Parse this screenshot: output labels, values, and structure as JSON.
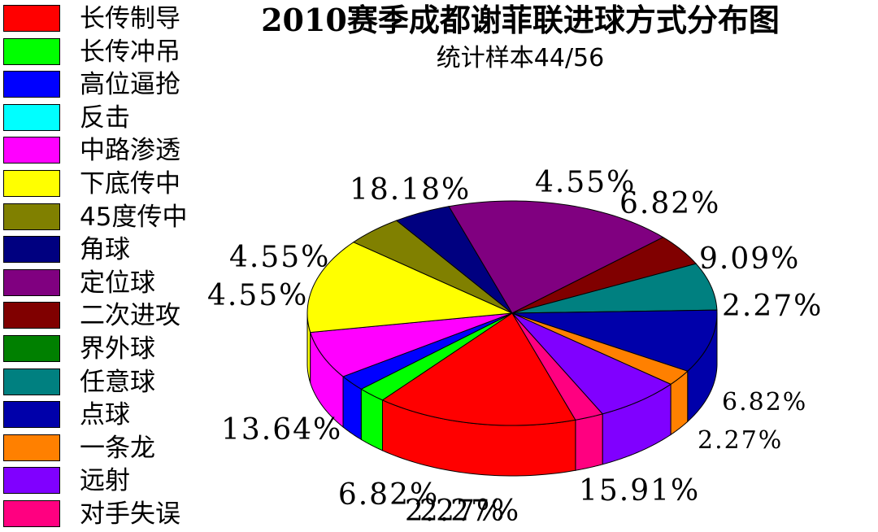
{
  "chart_data": {
    "type": "pie",
    "title": "2010赛季成都谢菲联进球方式分布图",
    "subtitle": "统计样本44/56",
    "slices": [
      {
        "label": "长传制导",
        "value": 15.91,
        "value_label": "15.91%",
        "color": "#ff0000"
      },
      {
        "label": "长传冲吊",
        "value": 2.27,
        "value_label": "2.27%",
        "color": "#00ff00"
      },
      {
        "label": "高位逼抢",
        "value": 2.27,
        "value_label": "2.27%",
        "color": "#0000ff"
      },
      {
        "label": "反击",
        "value": 0,
        "value_label": "",
        "color": "#00ffff"
      },
      {
        "label": "中路渗透",
        "value": 6.82,
        "value_label": "6.82%",
        "color": "#ff00ff"
      },
      {
        "label": "下底传中",
        "value": 13.64,
        "value_label": "13.64%",
        "color": "#ffff00"
      },
      {
        "label": "45度传中",
        "value": 4.55,
        "value_label": "4.55%",
        "color": "#808000"
      },
      {
        "label": "角球",
        "value": 4.55,
        "value_label": "4.55%",
        "color": "#000080"
      },
      {
        "label": "定位球",
        "value": 18.18,
        "value_label": "18.18%",
        "color": "#800080"
      },
      {
        "label": "二次进攻",
        "value": 4.55,
        "value_label": "4.55%",
        "color": "#800000"
      },
      {
        "label": "界外球",
        "value": 0,
        "value_label": "",
        "color": "#008000"
      },
      {
        "label": "任意球",
        "value": 6.82,
        "value_label": "6.82%",
        "color": "#008080"
      },
      {
        "label": "点球",
        "value": 9.09,
        "value_label": "9.09%",
        "color": "#0000aa"
      },
      {
        "label": "一条龙",
        "value": 2.27,
        "value_label": "2.27%",
        "color": "#ff8000"
      },
      {
        "label": "远射",
        "value": 6.82,
        "value_label": "6.82%",
        "color": "#8000ff"
      },
      {
        "label": "对手失误",
        "value": 2.27,
        "value_label": "2.27%",
        "color": "#ff0080"
      }
    ],
    "legend_position": "left"
  }
}
